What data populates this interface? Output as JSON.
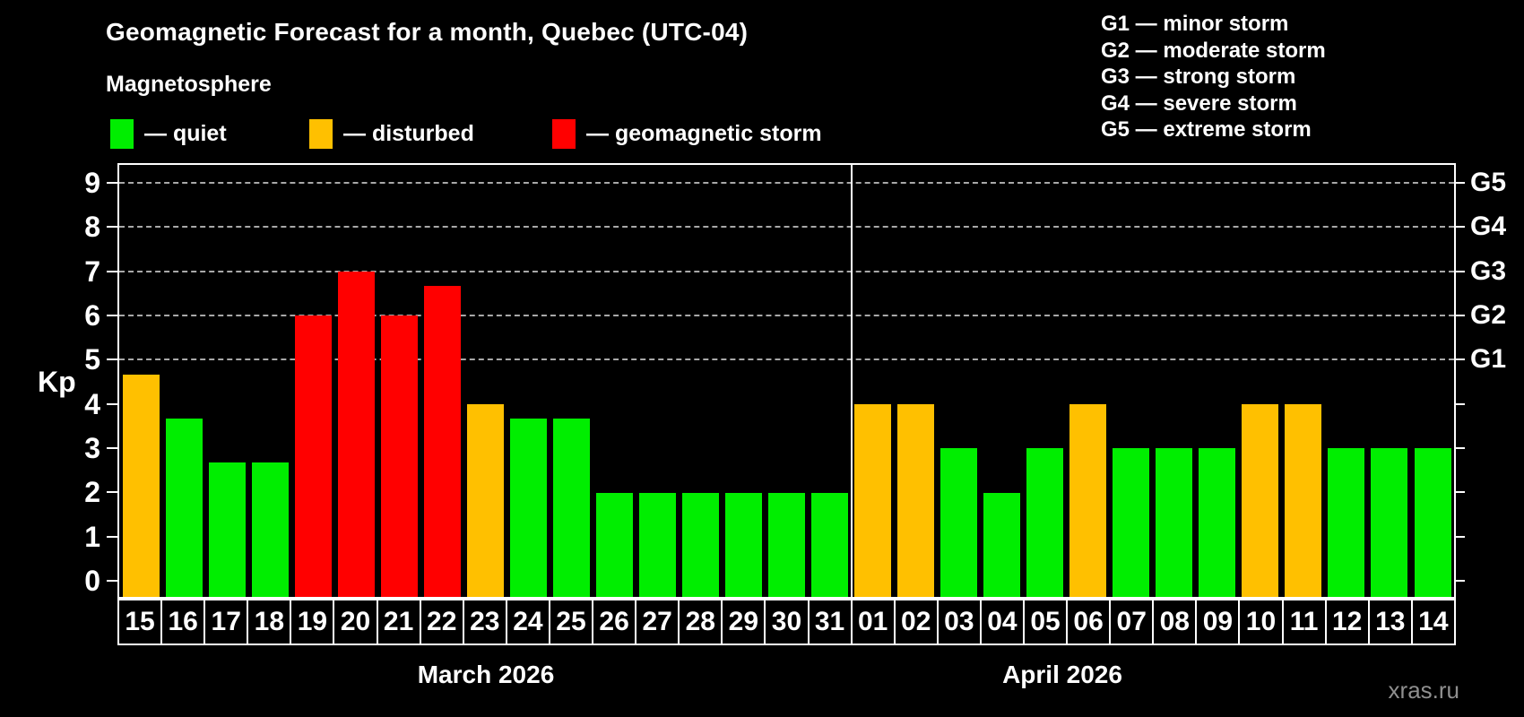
{
  "title": "Geomagnetic Forecast for a month, Quebec (UTC-04)",
  "subtitle": "Magnetosphere",
  "legend": {
    "items": [
      {
        "key": "quiet",
        "label": "— quiet",
        "color": "#00EE00"
      },
      {
        "key": "disturbed",
        "label": "— disturbed",
        "color": "#FFC000"
      },
      {
        "key": "storm",
        "label": "— geomagnetic storm",
        "color": "#FF0000"
      }
    ]
  },
  "storm_legend": [
    "G1 — minor storm",
    "G2 — moderate storm",
    "G3 — strong storm",
    "G4 — severe storm",
    "G5 — extreme storm"
  ],
  "watermark": "xras.ru",
  "chart_data": {
    "type": "bar",
    "ylabel": "Kp",
    "ylim": [
      -0.36,
      9.4
    ],
    "y_ticks": [
      0,
      1,
      2,
      3,
      4,
      5,
      6,
      7,
      8,
      9
    ],
    "gridlines_at": [
      5,
      6,
      7,
      8,
      9
    ],
    "grid": "dashed horizontal at storm levels only",
    "legend_position": "top",
    "right_axis": [
      {
        "label": "G1",
        "kp": 5
      },
      {
        "label": "G2",
        "kp": 6
      },
      {
        "label": "G3",
        "kp": 7
      },
      {
        "label": "G4",
        "kp": 8
      },
      {
        "label": "G5",
        "kp": 9
      }
    ],
    "status_colors": {
      "quiet": "#00EE00",
      "disturbed": "#FFC000",
      "storm": "#FF0000"
    },
    "months": [
      {
        "label": "March 2026",
        "days": [
          {
            "label": "15",
            "kp": 4.67,
            "status": "disturbed"
          },
          {
            "label": "16",
            "kp": 3.67,
            "status": "quiet"
          },
          {
            "label": "17",
            "kp": 2.67,
            "status": "quiet"
          },
          {
            "label": "18",
            "kp": 2.67,
            "status": "quiet"
          },
          {
            "label": "19",
            "kp": 6.0,
            "status": "storm"
          },
          {
            "label": "20",
            "kp": 7.0,
            "status": "storm"
          },
          {
            "label": "21",
            "kp": 6.0,
            "status": "storm"
          },
          {
            "label": "22",
            "kp": 6.67,
            "status": "storm"
          },
          {
            "label": "23",
            "kp": 4.0,
            "status": "disturbed"
          },
          {
            "label": "24",
            "kp": 3.67,
            "status": "quiet"
          },
          {
            "label": "25",
            "kp": 3.67,
            "status": "quiet"
          },
          {
            "label": "26",
            "kp": 2.0,
            "status": "quiet"
          },
          {
            "label": "27",
            "kp": 2.0,
            "status": "quiet"
          },
          {
            "label": "28",
            "kp": 2.0,
            "status": "quiet"
          },
          {
            "label": "29",
            "kp": 2.0,
            "status": "quiet"
          },
          {
            "label": "30",
            "kp": 2.0,
            "status": "quiet"
          },
          {
            "label": "31",
            "kp": 2.0,
            "status": "quiet"
          }
        ]
      },
      {
        "label": "April 2026",
        "days": [
          {
            "label": "01",
            "kp": 4.0,
            "status": "disturbed"
          },
          {
            "label": "02",
            "kp": 4.0,
            "status": "disturbed"
          },
          {
            "label": "03",
            "kp": 3.0,
            "status": "quiet"
          },
          {
            "label": "04",
            "kp": 2.0,
            "status": "quiet"
          },
          {
            "label": "05",
            "kp": 3.0,
            "status": "quiet"
          },
          {
            "label": "06",
            "kp": 4.0,
            "status": "disturbed"
          },
          {
            "label": "07",
            "kp": 3.0,
            "status": "quiet"
          },
          {
            "label": "08",
            "kp": 3.0,
            "status": "quiet"
          },
          {
            "label": "09",
            "kp": 3.0,
            "status": "quiet"
          },
          {
            "label": "10",
            "kp": 4.0,
            "status": "disturbed"
          },
          {
            "label": "11",
            "kp": 4.0,
            "status": "disturbed"
          },
          {
            "label": "12",
            "kp": 3.0,
            "status": "quiet"
          },
          {
            "label": "13",
            "kp": 3.0,
            "status": "quiet"
          },
          {
            "label": "14",
            "kp": 3.0,
            "status": "quiet"
          }
        ]
      }
    ]
  }
}
